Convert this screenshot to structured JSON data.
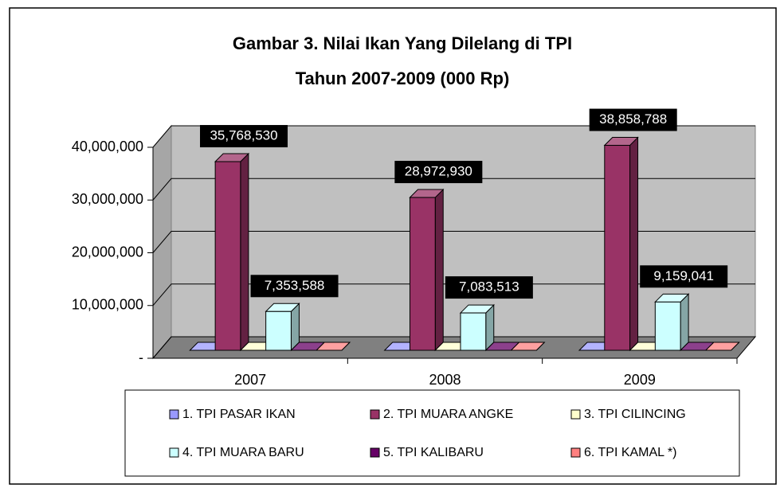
{
  "chart_data": {
    "type": "bar3d",
    "title": "Gambar 3. Nilai Ikan Yang Dilelang di TPI",
    "subtitle": "Tahun 2007-2009 (000 Rp)",
    "categories": [
      "2007",
      "2008",
      "2009"
    ],
    "series": [
      {
        "name": "1. TPI PASAR IKAN",
        "color": "#9999ff",
        "values": [
          0,
          0,
          0
        ]
      },
      {
        "name": "2. TPI MUARA ANGKE",
        "color": "#993366",
        "values": [
          35768530,
          28972930,
          38858788
        ],
        "value_labels": [
          "35,768,530",
          "28,972,930",
          "38,858,788"
        ]
      },
      {
        "name": "3. TPI CILINCING",
        "color": "#ffffcc",
        "values": [
          0,
          0,
          0
        ]
      },
      {
        "name": "4. TPI MUARA BARU",
        "color": "#ccffff",
        "values": [
          7353588,
          7083513,
          9159041
        ],
        "value_labels": [
          "7,353,588",
          "7,083,513",
          "9,159,041"
        ]
      },
      {
        "name": "5. TPI KALIBARU",
        "color": "#660066",
        "values": [
          0,
          0,
          0
        ]
      },
      {
        "name": "6. TPI KAMAL *)",
        "color": "#ff8080",
        "values": [
          0,
          0,
          0
        ]
      }
    ],
    "ylim": [
      0,
      40000000
    ],
    "yticks": [
      {
        "value": 0,
        "label": "-"
      },
      {
        "value": 10000000,
        "label": "10,000,000"
      },
      {
        "value": 20000000,
        "label": "20,000,000"
      },
      {
        "value": 30000000,
        "label": "30,000,000"
      },
      {
        "value": 40000000,
        "label": "40,000,000"
      }
    ],
    "grid": true,
    "legend": "bottom"
  }
}
